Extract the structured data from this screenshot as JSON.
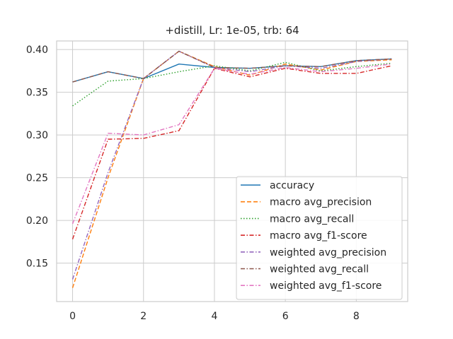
{
  "chart_data": {
    "type": "line",
    "title": "+distill, Lr: 1e-05, trb: 64",
    "xlabel": "",
    "ylabel": "",
    "xlim": [
      -0.45,
      9.45
    ],
    "ylim": [
      0.105,
      0.41
    ],
    "x_ticks": [
      0,
      2,
      4,
      6,
      8
    ],
    "y_ticks": [
      0.15,
      0.2,
      0.25,
      0.3,
      0.35,
      0.4
    ],
    "y_tick_labels": [
      "0.15",
      "0.20",
      "0.25",
      "0.30",
      "0.35",
      "0.40"
    ],
    "grid": true,
    "legend_position": "lower-right",
    "x": [
      0,
      1,
      2,
      3,
      4,
      5,
      6,
      7,
      8,
      9
    ],
    "series": [
      {
        "name": "accuracy",
        "color": "#1f77b4",
        "dash": "solid",
        "values": [
          0.362,
          0.374,
          0.366,
          0.383,
          0.379,
          0.378,
          0.381,
          0.38,
          0.387,
          0.389
        ]
      },
      {
        "name": "macro avg_precision",
        "color": "#ff7f0e",
        "dash": "dashed",
        "values": [
          0.121,
          0.25,
          0.366,
          0.398,
          0.38,
          0.37,
          0.383,
          0.376,
          0.386,
          0.388
        ]
      },
      {
        "name": "macro avg_recall",
        "color": "#2ca02c",
        "dash": "dotted",
        "values": [
          0.334,
          0.363,
          0.366,
          0.374,
          0.381,
          0.375,
          0.385,
          0.375,
          0.38,
          0.384
        ]
      },
      {
        "name": "macro avg_f1-score",
        "color": "#d62728",
        "dash": "dashdot",
        "values": [
          0.178,
          0.295,
          0.296,
          0.305,
          0.378,
          0.368,
          0.378,
          0.372,
          0.372,
          0.381
        ]
      },
      {
        "name": "weighted avg_precision",
        "color": "#9467bd",
        "dash": "dashdot",
        "values": [
          0.131,
          0.256,
          0.366,
          0.398,
          0.379,
          0.374,
          0.381,
          0.378,
          0.386,
          0.389
        ]
      },
      {
        "name": "weighted avg_recall",
        "color": "#8c564b",
        "dash": "dashdot",
        "values": [
          0.362,
          0.374,
          0.366,
          0.398,
          0.379,
          0.378,
          0.381,
          0.38,
          0.387,
          0.389
        ]
      },
      {
        "name": "weighted avg_f1-score",
        "color": "#e377c2",
        "dash": "dashdot",
        "values": [
          0.196,
          0.302,
          0.3,
          0.312,
          0.378,
          0.371,
          0.379,
          0.374,
          0.378,
          0.383
        ]
      }
    ]
  }
}
